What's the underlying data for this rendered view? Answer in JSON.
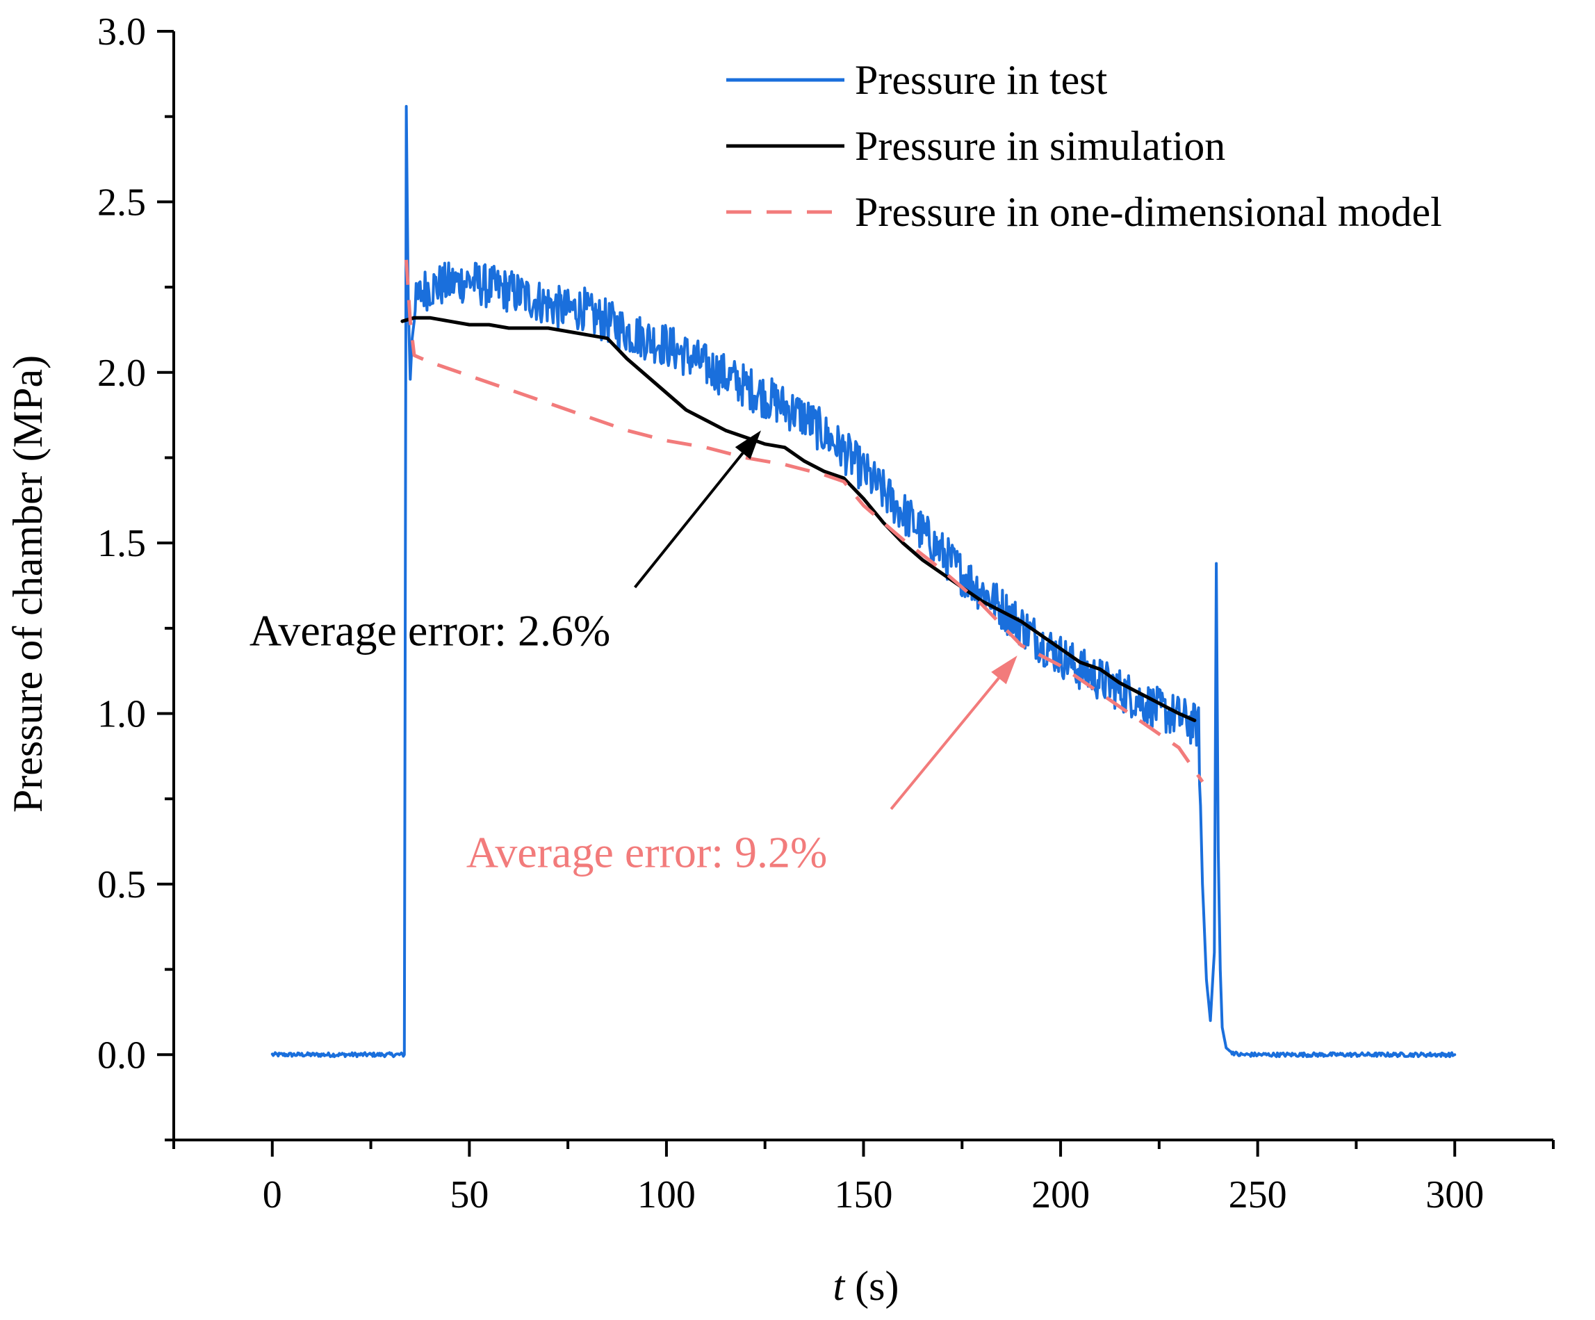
{
  "chart_data": {
    "type": "line",
    "title": "",
    "xlabel": {
      "italic": "t",
      "rest": " (s)"
    },
    "ylabel": "Pressure of chamber (MPa)",
    "xlim": [
      -25,
      325
    ],
    "ylim": [
      -0.25,
      3.0
    ],
    "xticks": [
      0,
      50,
      100,
      150,
      200,
      250,
      300
    ],
    "xtick_labels": [
      "0",
      "50",
      "100",
      "150",
      "200",
      "250",
      "300"
    ],
    "yticks": [
      0.0,
      0.5,
      1.0,
      1.5,
      2.0,
      2.5,
      3.0
    ],
    "ytick_labels": [
      "0.0",
      "0.5",
      "1.0",
      "1.5",
      "2.0",
      "2.5",
      "3.0"
    ],
    "grid": false,
    "legend_position": "top-right",
    "series": [
      {
        "name": "Pressure in test",
        "color": "#1a6fdc",
        "style": "solid",
        "noisy": true,
        "x": [
          0,
          10,
          20,
          30,
          33.5,
          34.0,
          34.5,
          35.0,
          35.5,
          36.5,
          38,
          40,
          45,
          50,
          55,
          60,
          65,
          70,
          75,
          79,
          80,
          85,
          90,
          95,
          100,
          105,
          110,
          115,
          120,
          125,
          130,
          135,
          140,
          145,
          150,
          155,
          160,
          165,
          170,
          175,
          180,
          185,
          190,
          195,
          200,
          205,
          210,
          215,
          220,
          225,
          230,
          235,
          236,
          237,
          238,
          239,
          239.5,
          240,
          240.5,
          241,
          242,
          243,
          245,
          250,
          260,
          270,
          280,
          290,
          300
        ],
        "y": [
          0.0,
          0.0,
          0.0,
          0.0,
          0.0,
          2.78,
          2.2,
          1.98,
          2.1,
          2.2,
          2.24,
          2.25,
          2.26,
          2.27,
          2.25,
          2.24,
          2.22,
          2.2,
          2.18,
          2.19,
          2.17,
          2.15,
          2.12,
          2.1,
          2.08,
          2.05,
          2.02,
          1.99,
          1.96,
          1.93,
          1.9,
          1.87,
          1.82,
          1.77,
          1.71,
          1.65,
          1.59,
          1.53,
          1.47,
          1.41,
          1.36,
          1.31,
          1.26,
          1.21,
          1.17,
          1.13,
          1.1,
          1.07,
          1.04,
          1.01,
          0.99,
          0.96,
          0.5,
          0.22,
          0.1,
          0.3,
          1.44,
          0.6,
          0.25,
          0.08,
          0.02,
          0.01,
          0.0,
          0.0,
          0.0,
          0.0,
          0.0,
          0.0,
          0.0
        ]
      },
      {
        "name": "Pressure in simulation",
        "color": "#000000",
        "style": "solid",
        "x": [
          33,
          36,
          40,
          45,
          50,
          55,
          60,
          70,
          80,
          85,
          90,
          95,
          100,
          105,
          110,
          115,
          120,
          125,
          130,
          135,
          140,
          145,
          150,
          155,
          160,
          165,
          170,
          175,
          180,
          185,
          190,
          195,
          200,
          205,
          210,
          215,
          220,
          225,
          230,
          234
        ],
        "y": [
          2.15,
          2.16,
          2.16,
          2.15,
          2.14,
          2.14,
          2.13,
          2.13,
          2.11,
          2.1,
          2.04,
          1.99,
          1.94,
          1.89,
          1.86,
          1.83,
          1.81,
          1.79,
          1.78,
          1.74,
          1.71,
          1.69,
          1.63,
          1.56,
          1.5,
          1.45,
          1.41,
          1.37,
          1.33,
          1.3,
          1.27,
          1.23,
          1.19,
          1.15,
          1.13,
          1.09,
          1.06,
          1.03,
          1.0,
          0.98
        ]
      },
      {
        "name": "Pressure in one-dimensional model",
        "color": "#f27b7b",
        "style": "dashed",
        "x": [
          34,
          35,
          36,
          40,
          50,
          60,
          70,
          80,
          90,
          100,
          110,
          120,
          130,
          140,
          145,
          150,
          160,
          170,
          180,
          190,
          200,
          210,
          220,
          230,
          236
        ],
        "y": [
          2.33,
          2.15,
          2.05,
          2.03,
          1.99,
          1.95,
          1.91,
          1.87,
          1.83,
          1.8,
          1.78,
          1.75,
          1.73,
          1.7,
          1.68,
          1.61,
          1.51,
          1.42,
          1.32,
          1.2,
          1.14,
          1.06,
          0.98,
          0.9,
          0.8
        ]
      }
    ],
    "annotations": [
      {
        "text": "Average error: 2.6%",
        "color": "#000000",
        "arrow_from": [
          92,
          1.37
        ],
        "arrow_to": [
          124,
          1.83
        ],
        "text_at": [
          40,
          1.2
        ]
      },
      {
        "text": "Average error: 9.2%",
        "color": "#f27b7b",
        "arrow_from": [
          157,
          0.72
        ],
        "arrow_to": [
          189,
          1.17
        ],
        "text_at": [
          95,
          0.55
        ]
      }
    ]
  }
}
